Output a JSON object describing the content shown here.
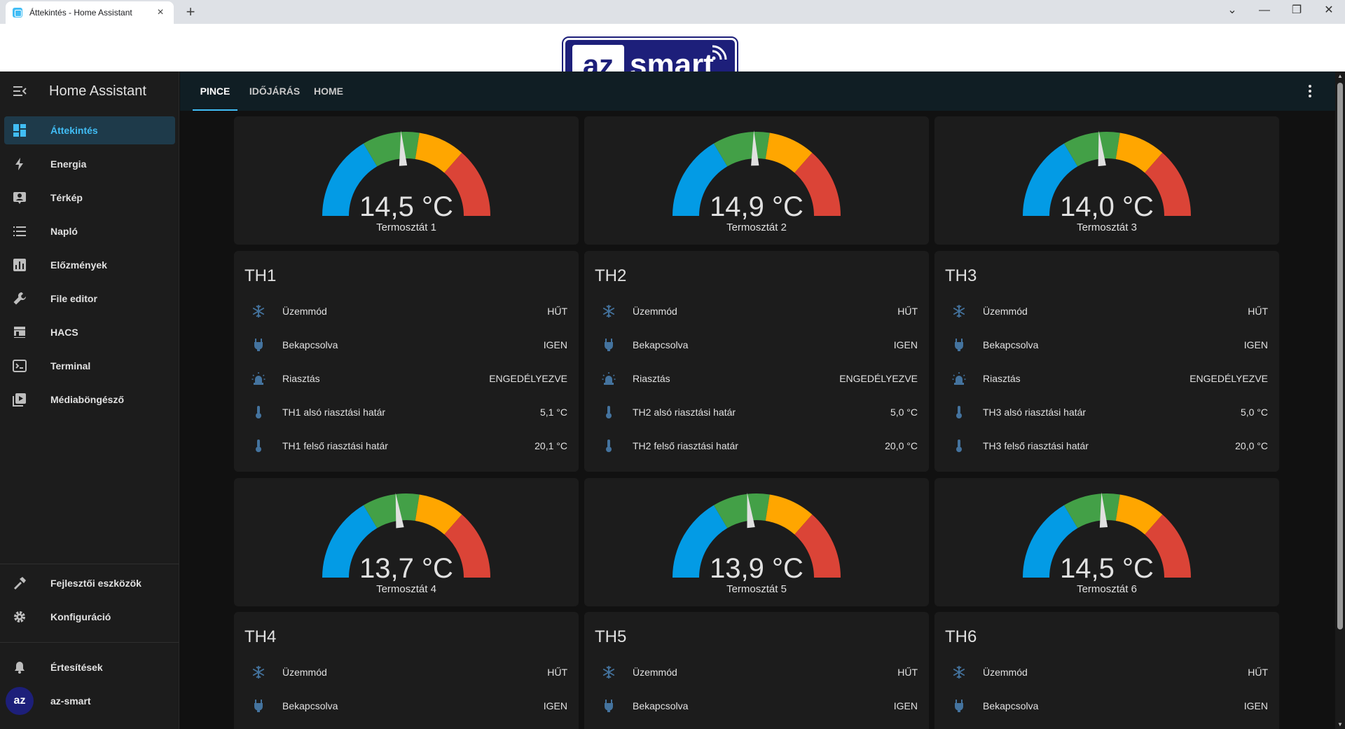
{
  "browser": {
    "tab_title": "Áttekintés - Home Assistant",
    "tab_close": "×",
    "new_tab": "+",
    "window_controls": [
      "⌄",
      "—",
      "❐",
      "✕"
    ]
  },
  "banner": {
    "logo_left": "az",
    "logo_right": "smart"
  },
  "sidebar": {
    "title": "Home Assistant",
    "items": [
      {
        "label": "Áttekintés",
        "icon": "dashboard-icon"
      },
      {
        "label": "Energia",
        "icon": "lightning-icon"
      },
      {
        "label": "Térkép",
        "icon": "map-person-icon"
      },
      {
        "label": "Napló",
        "icon": "list-icon"
      },
      {
        "label": "Előzmények",
        "icon": "chart-icon"
      },
      {
        "label": "File editor",
        "icon": "wrench-icon"
      },
      {
        "label": "HACS",
        "icon": "hacs-icon"
      },
      {
        "label": "Terminal",
        "icon": "console-icon"
      },
      {
        "label": "Médiaböngésző",
        "icon": "play-box-icon"
      }
    ],
    "bottom_items": [
      {
        "label": "Fejlesztői eszközök",
        "icon": "hammer-icon"
      },
      {
        "label": "Konfiguráció",
        "icon": "gear-icon"
      }
    ],
    "notifications": "Értesítések",
    "user_avatar": "az",
    "user": "az-smart"
  },
  "topbar": {
    "tabs": [
      "PINCE",
      "IDŐJÁRÁS",
      "HOME"
    ],
    "active_tab": "PINCE"
  },
  "colors": {
    "accent": "#41bdf5",
    "gauge_blue": "#039be5",
    "gauge_green": "#43a047",
    "gauge_yellow": "#ffa600",
    "gauge_red": "#db4437"
  },
  "gauges": [
    {
      "value": "14,5 °C",
      "name": "Termosztát 1",
      "fraction": 0.48
    },
    {
      "value": "14,9 °C",
      "name": "Termosztát 2",
      "fraction": 0.49
    },
    {
      "value": "14,0 °C",
      "name": "Termosztát 3",
      "fraction": 0.47
    },
    {
      "value": "13,7 °C",
      "name": "Termosztát 4",
      "fraction": 0.46
    },
    {
      "value": "13,9 °C",
      "name": "Termosztát 5",
      "fraction": 0.465
    },
    {
      "value": "14,5 °C",
      "name": "Termosztát 6",
      "fraction": 0.48
    }
  ],
  "entities": [
    {
      "title": "TH1",
      "rows": [
        {
          "name": "Üzemmód",
          "value": "HŰT",
          "icon": "snowflake-icon"
        },
        {
          "name": "Bekapcsolva",
          "value": "IGEN",
          "icon": "power-plug-icon"
        },
        {
          "name": "Riasztás",
          "value": "ENGEDÉLYEZVE",
          "icon": "alarm-light-icon"
        },
        {
          "name": "TH1 alsó riasztási határ",
          "value": "5,1 °C",
          "icon": "thermometer-icon"
        },
        {
          "name": "TH1 felső riasztási határ",
          "value": "20,1 °C",
          "icon": "thermometer-icon"
        }
      ]
    },
    {
      "title": "TH2",
      "rows": [
        {
          "name": "Üzemmód",
          "value": "HŰT",
          "icon": "snowflake-icon"
        },
        {
          "name": "Bekapcsolva",
          "value": "IGEN",
          "icon": "power-plug-icon"
        },
        {
          "name": "Riasztás",
          "value": "ENGEDÉLYEZVE",
          "icon": "alarm-light-icon"
        },
        {
          "name": "TH2 alsó riasztási határ",
          "value": "5,0 °C",
          "icon": "thermometer-icon"
        },
        {
          "name": "TH2 felső riasztási határ",
          "value": "20,0 °C",
          "icon": "thermometer-icon"
        }
      ]
    },
    {
      "title": "TH3",
      "rows": [
        {
          "name": "Üzemmód",
          "value": "HŰT",
          "icon": "snowflake-icon"
        },
        {
          "name": "Bekapcsolva",
          "value": "IGEN",
          "icon": "power-plug-icon"
        },
        {
          "name": "Riasztás",
          "value": "ENGEDÉLYEZVE",
          "icon": "alarm-light-icon"
        },
        {
          "name": "TH3 alsó riasztási határ",
          "value": "5,0 °C",
          "icon": "thermometer-icon"
        },
        {
          "name": "TH3 felső riasztási határ",
          "value": "20,0 °C",
          "icon": "thermometer-icon"
        }
      ]
    },
    {
      "title": "TH4",
      "rows": [
        {
          "name": "Üzemmód",
          "value": "HŰT",
          "icon": "snowflake-icon"
        },
        {
          "name": "Bekapcsolva",
          "value": "IGEN",
          "icon": "power-plug-icon"
        }
      ]
    },
    {
      "title": "TH5",
      "rows": [
        {
          "name": "Üzemmód",
          "value": "HŰT",
          "icon": "snowflake-icon"
        },
        {
          "name": "Bekapcsolva",
          "value": "IGEN",
          "icon": "power-plug-icon"
        }
      ]
    },
    {
      "title": "TH6",
      "rows": [
        {
          "name": "Üzemmód",
          "value": "HŰT",
          "icon": "snowflake-icon"
        },
        {
          "name": "Bekapcsolva",
          "value": "IGEN",
          "icon": "power-plug-icon"
        }
      ]
    }
  ]
}
